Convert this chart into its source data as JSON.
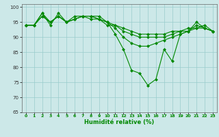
{
  "xlabel": "Humidité relative (%)",
  "background_color": "#cce8e8",
  "grid_color": "#99cccc",
  "line_color": "#008800",
  "ylim": [
    65,
    101
  ],
  "xlim": [
    -0.5,
    23.5
  ],
  "yticks": [
    65,
    70,
    75,
    80,
    85,
    90,
    95,
    100
  ],
  "xticks": [
    0,
    1,
    2,
    3,
    4,
    5,
    6,
    7,
    8,
    9,
    10,
    11,
    12,
    13,
    14,
    15,
    16,
    17,
    18,
    19,
    20,
    21,
    22,
    23
  ],
  "series": [
    [
      94,
      94,
      98,
      94,
      98,
      95,
      97,
      97,
      97,
      97,
      95,
      91,
      86,
      79,
      78,
      74,
      76,
      86,
      82,
      91,
      92,
      95,
      93,
      92
    ],
    [
      94,
      94,
      98,
      95,
      97,
      95,
      96,
      97,
      97,
      96,
      95,
      93,
      90,
      88,
      87,
      87,
      88,
      89,
      90,
      91,
      92,
      94,
      93,
      92
    ],
    [
      94,
      94,
      97,
      95,
      97,
      95,
      96,
      97,
      96,
      96,
      94,
      94,
      92,
      91,
      90,
      90,
      90,
      90,
      91,
      92,
      92,
      93,
      93,
      92
    ],
    [
      94,
      94,
      97,
      95,
      97,
      95,
      96,
      97,
      97,
      96,
      95,
      94,
      93,
      92,
      91,
      91,
      91,
      91,
      92,
      92,
      93,
      93,
      94,
      92
    ]
  ]
}
